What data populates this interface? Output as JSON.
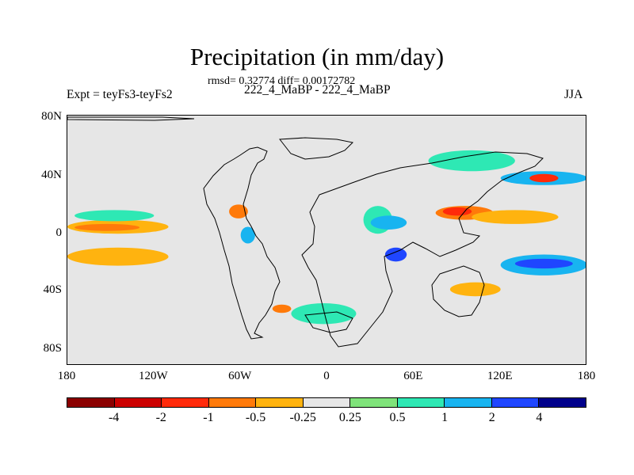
{
  "title": "Precipitation (in mm/day)",
  "stats": "rmsd= 0.32774 diff= 0.00172782",
  "subtitle": "222_4_MaBP - 222_4_MaBP",
  "expt": "Expt = teyFs3-teyFs2",
  "season": "JJA",
  "y_ticks": [
    "80N",
    "40N",
    "0",
    "40S",
    "80S"
  ],
  "x_ticks": [
    "180",
    "120W",
    "60W",
    "0",
    "60E",
    "120E",
    "180"
  ],
  "colorbar": {
    "colors": [
      "#8b0000",
      "#cc0000",
      "#ff2a0a",
      "#ff7a0a",
      "#ffb30f",
      "#e6e6e6",
      "#7fe37a",
      "#2ee8b4",
      "#18b4f0",
      "#1f46ff",
      "#00008b"
    ],
    "labels": [
      "-4",
      "-2",
      "-1",
      "-0.5",
      "-0.25",
      "0.25",
      "0.5",
      "1",
      "2",
      "4"
    ]
  },
  "chart_data": {
    "type": "filled-contour map",
    "variable": "Precipitation difference",
    "units": "mm/day",
    "x_range": [
      -180,
      180
    ],
    "y_range": [
      -90,
      90
    ],
    "levels": [
      -4,
      -2,
      -1,
      -0.5,
      -0.25,
      0.25,
      0.5,
      1,
      2,
      4
    ],
    "regions": [
      {
        "lon": [
          -180,
          -125
        ],
        "lat": [
          -15,
          -7
        ],
        "value": -1
      },
      {
        "lon": [
          -180,
          -110
        ],
        "lat": [
          -18,
          -5
        ],
        "value": -0.5
      },
      {
        "lon": [
          -180,
          -110
        ],
        "lat": [
          5,
          15
        ],
        "value": -0.5
      },
      {
        "lon": [
          -175,
          -130
        ],
        "lat": [
          7,
          12
        ],
        "value": -1
      },
      {
        "lon": [
          -175,
          -120
        ],
        "lat": [
          14,
          22
        ],
        "value": 0.5
      },
      {
        "lon": [
          -170,
          -130
        ],
        "lat": [
          -40,
          -30
        ],
        "value": -0.25
      },
      {
        "lon": [
          -100,
          -80
        ],
        "lat": [
          -40,
          -28
        ],
        "value": -0.25
      },
      {
        "lon": [
          -150,
          -125
        ],
        "lat": [
          28,
          34
        ],
        "value": -0.25
      },
      {
        "lon": [
          -60,
          -50
        ],
        "lat": [
          -2,
          10
        ],
        "value": 1
      },
      {
        "lon": [
          -68,
          -55
        ],
        "lat": [
          16,
          26
        ],
        "value": -1
      },
      {
        "lon": [
          -38,
          -25
        ],
        "lat": [
          -52,
          -46
        ],
        "value": -1
      },
      {
        "lon": [
          -25,
          20
        ],
        "lat": [
          -60,
          -45
        ],
        "value": 0.5
      },
      {
        "lon": [
          25,
          45
        ],
        "lat": [
          5,
          25
        ],
        "value": 0.5
      },
      {
        "lon": [
          30,
          55
        ],
        "lat": [
          8,
          18
        ],
        "value": 1
      },
      {
        "lon": [
          40,
          55
        ],
        "lat": [
          -15,
          -5
        ],
        "value": 2
      },
      {
        "lon": [
          75,
          115
        ],
        "lat": [
          15,
          25
        ],
        "value": -1
      },
      {
        "lon": [
          80,
          100
        ],
        "lat": [
          18,
          24
        ],
        "value": -2
      },
      {
        "lon": [
          100,
          160
        ],
        "lat": [
          12,
          22
        ],
        "value": -0.5
      },
      {
        "lon": [
          120,
          180
        ],
        "lat": [
          -25,
          -10
        ],
        "value": 1
      },
      {
        "lon": [
          130,
          170
        ],
        "lat": [
          -20,
          -13
        ],
        "value": 2
      },
      {
        "lon": [
          85,
          120
        ],
        "lat": [
          -40,
          -30
        ],
        "value": -0.5
      },
      {
        "lon": [
          120,
          180
        ],
        "lat": [
          40,
          50
        ],
        "value": 1
      },
      {
        "lon": [
          140,
          160
        ],
        "lat": [
          42,
          48
        ],
        "value": -2
      },
      {
        "lon": [
          70,
          130
        ],
        "lat": [
          50,
          65
        ],
        "value": 0.5
      }
    ]
  }
}
